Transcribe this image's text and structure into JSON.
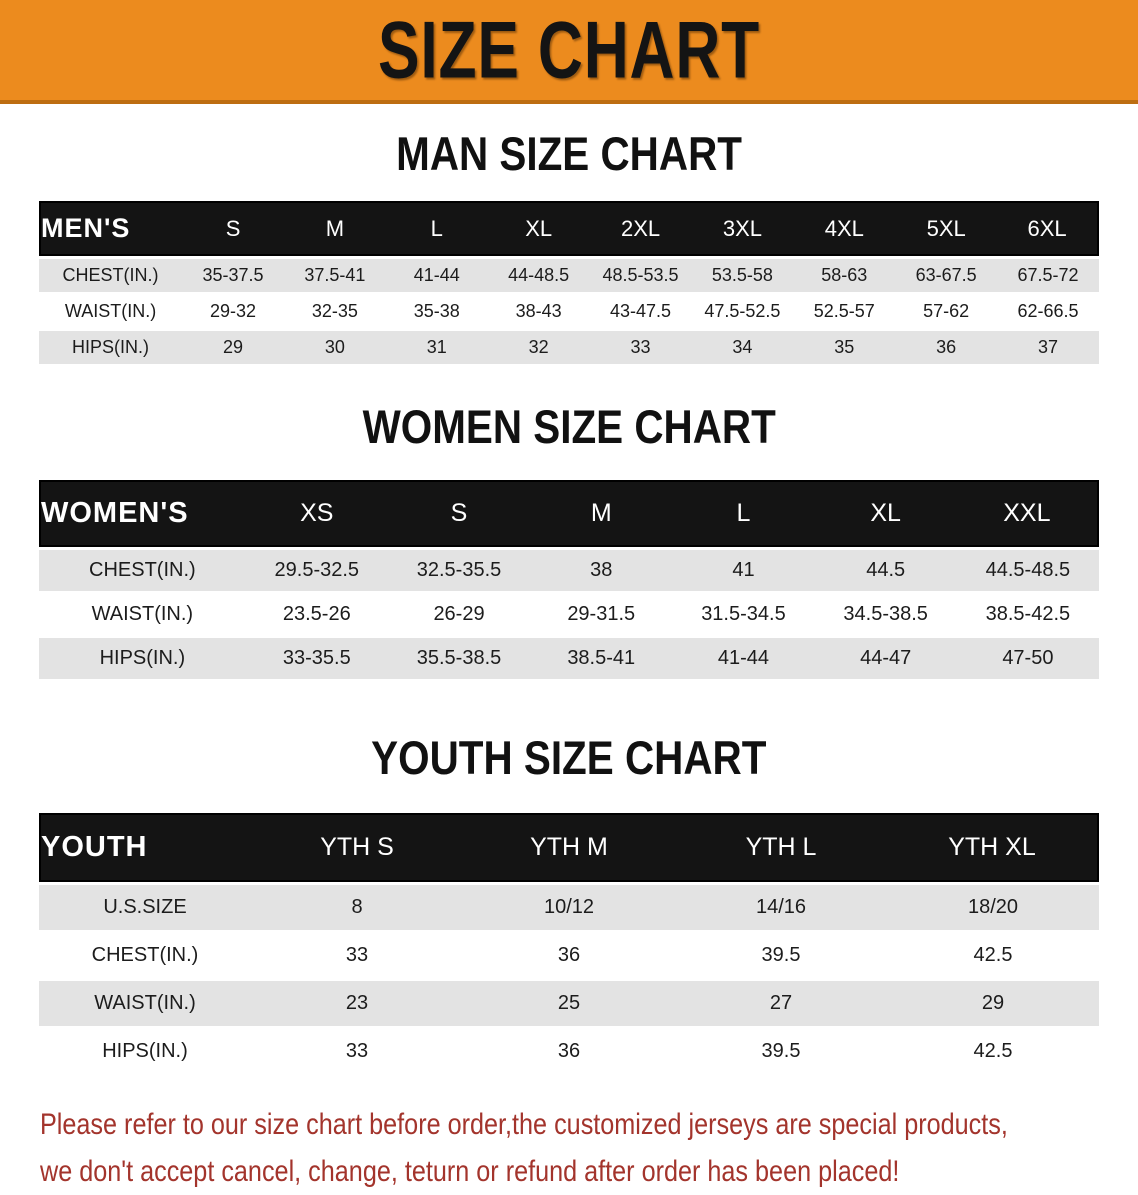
{
  "banner": {
    "title": "SIZE CHART",
    "bg_color": "#EC8B1E"
  },
  "sections": [
    {
      "id": "men",
      "heading": "MAN SIZE CHART",
      "table": {
        "label": "MEN'S",
        "columns": [
          "S",
          "M",
          "L",
          "XL",
          "2XL",
          "3XL",
          "4XL",
          "5XL",
          "6XL"
        ],
        "rows": [
          {
            "label": "CHEST(IN.)",
            "values": [
              "35-37.5",
              "37.5-41",
              "41-44",
              "44-48.5",
              "48.5-53.5",
              "53.5-58",
              "58-63",
              "63-67.5",
              "67.5-72"
            ]
          },
          {
            "label": "WAIST(IN.)",
            "values": [
              "29-32",
              "32-35",
              "35-38",
              "38-43",
              "43-47.5",
              "47.5-52.5",
              "52.5-57",
              "57-62",
              "62-66.5"
            ]
          },
          {
            "label": "HIPS(IN.)",
            "values": [
              "29",
              "30",
              "31",
              "32",
              "33",
              "34",
              "35",
              "36",
              "37"
            ]
          }
        ]
      }
    },
    {
      "id": "women",
      "heading": "WOMEN SIZE CHART",
      "table": {
        "label": "WOMEN'S",
        "columns": [
          "XS",
          "S",
          "M",
          "L",
          "XL",
          "XXL"
        ],
        "rows": [
          {
            "label": "CHEST(IN.)",
            "values": [
              "29.5-32.5",
              "32.5-35.5",
              "38",
              "41",
              "44.5",
              "44.5-48.5"
            ]
          },
          {
            "label": "WAIST(IN.)",
            "values": [
              "23.5-26",
              "26-29",
              "29-31.5",
              "31.5-34.5",
              "34.5-38.5",
              "38.5-42.5"
            ]
          },
          {
            "label": "HIPS(IN.)",
            "values": [
              "33-35.5",
              "35.5-38.5",
              "38.5-41",
              "41-44",
              "44-47",
              "47-50"
            ]
          }
        ]
      }
    },
    {
      "id": "youth",
      "heading": "YOUTH SIZE CHART",
      "table": {
        "label": "YOUTH",
        "columns": [
          "YTH S",
          "YTH M",
          "YTH L",
          "YTH XL"
        ],
        "rows": [
          {
            "label": "U.S.SIZE",
            "values": [
              "8",
              "10/12",
              "14/16",
              "18/20"
            ]
          },
          {
            "label": "CHEST(IN.)",
            "values": [
              "33",
              "36",
              "39.5",
              "42.5"
            ]
          },
          {
            "label": "WAIST(IN.)",
            "values": [
              "23",
              "25",
              "27",
              "29"
            ]
          },
          {
            "label": "HIPS(IN.)",
            "values": [
              "33",
              "36",
              "39.5",
              "42.5"
            ]
          }
        ]
      }
    }
  ],
  "footer_note": {
    "color": "#A3342C",
    "lines": [
      "Please refer to our size chart before order,the customized jerseys are special products,",
      "we don't accept cancel, change, teturn or refund after order has been placed!"
    ]
  },
  "chart_data": [
    {
      "type": "table",
      "title": "MAN SIZE CHART",
      "columns": [
        "MEN'S",
        "S",
        "M",
        "L",
        "XL",
        "2XL",
        "3XL",
        "4XL",
        "5XL",
        "6XL"
      ],
      "rows": [
        [
          "CHEST(IN.)",
          "35-37.5",
          "37.5-41",
          "41-44",
          "44-48.5",
          "48.5-53.5",
          "53.5-58",
          "58-63",
          "63-67.5",
          "67.5-72"
        ],
        [
          "WAIST(IN.)",
          "29-32",
          "32-35",
          "35-38",
          "38-43",
          "43-47.5",
          "47.5-52.5",
          "52.5-57",
          "57-62",
          "62-66.5"
        ],
        [
          "HIPS(IN.)",
          "29",
          "30",
          "31",
          "32",
          "33",
          "34",
          "35",
          "36",
          "37"
        ]
      ]
    },
    {
      "type": "table",
      "title": "WOMEN SIZE CHART",
      "columns": [
        "WOMEN'S",
        "XS",
        "S",
        "M",
        "L",
        "XL",
        "XXL"
      ],
      "rows": [
        [
          "CHEST(IN.)",
          "29.5-32.5",
          "32.5-35.5",
          "38",
          "41",
          "44.5",
          "44.5-48.5"
        ],
        [
          "WAIST(IN.)",
          "23.5-26",
          "26-29",
          "29-31.5",
          "31.5-34.5",
          "34.5-38.5",
          "38.5-42.5"
        ],
        [
          "HIPS(IN.)",
          "33-35.5",
          "35.5-38.5",
          "38.5-41",
          "41-44",
          "44-47",
          "47-50"
        ]
      ]
    },
    {
      "type": "table",
      "title": "YOUTH SIZE CHART",
      "columns": [
        "YOUTH",
        "YTH S",
        "YTH M",
        "YTH L",
        "YTH XL"
      ],
      "rows": [
        [
          "U.S.SIZE",
          "8",
          "10/12",
          "14/16",
          "18/20"
        ],
        [
          "CHEST(IN.)",
          "33",
          "36",
          "39.5",
          "42.5"
        ],
        [
          "WAIST(IN.)",
          "23",
          "25",
          "27",
          "29"
        ],
        [
          "HIPS(IN.)",
          "33",
          "36",
          "39.5",
          "42.5"
        ]
      ]
    }
  ]
}
